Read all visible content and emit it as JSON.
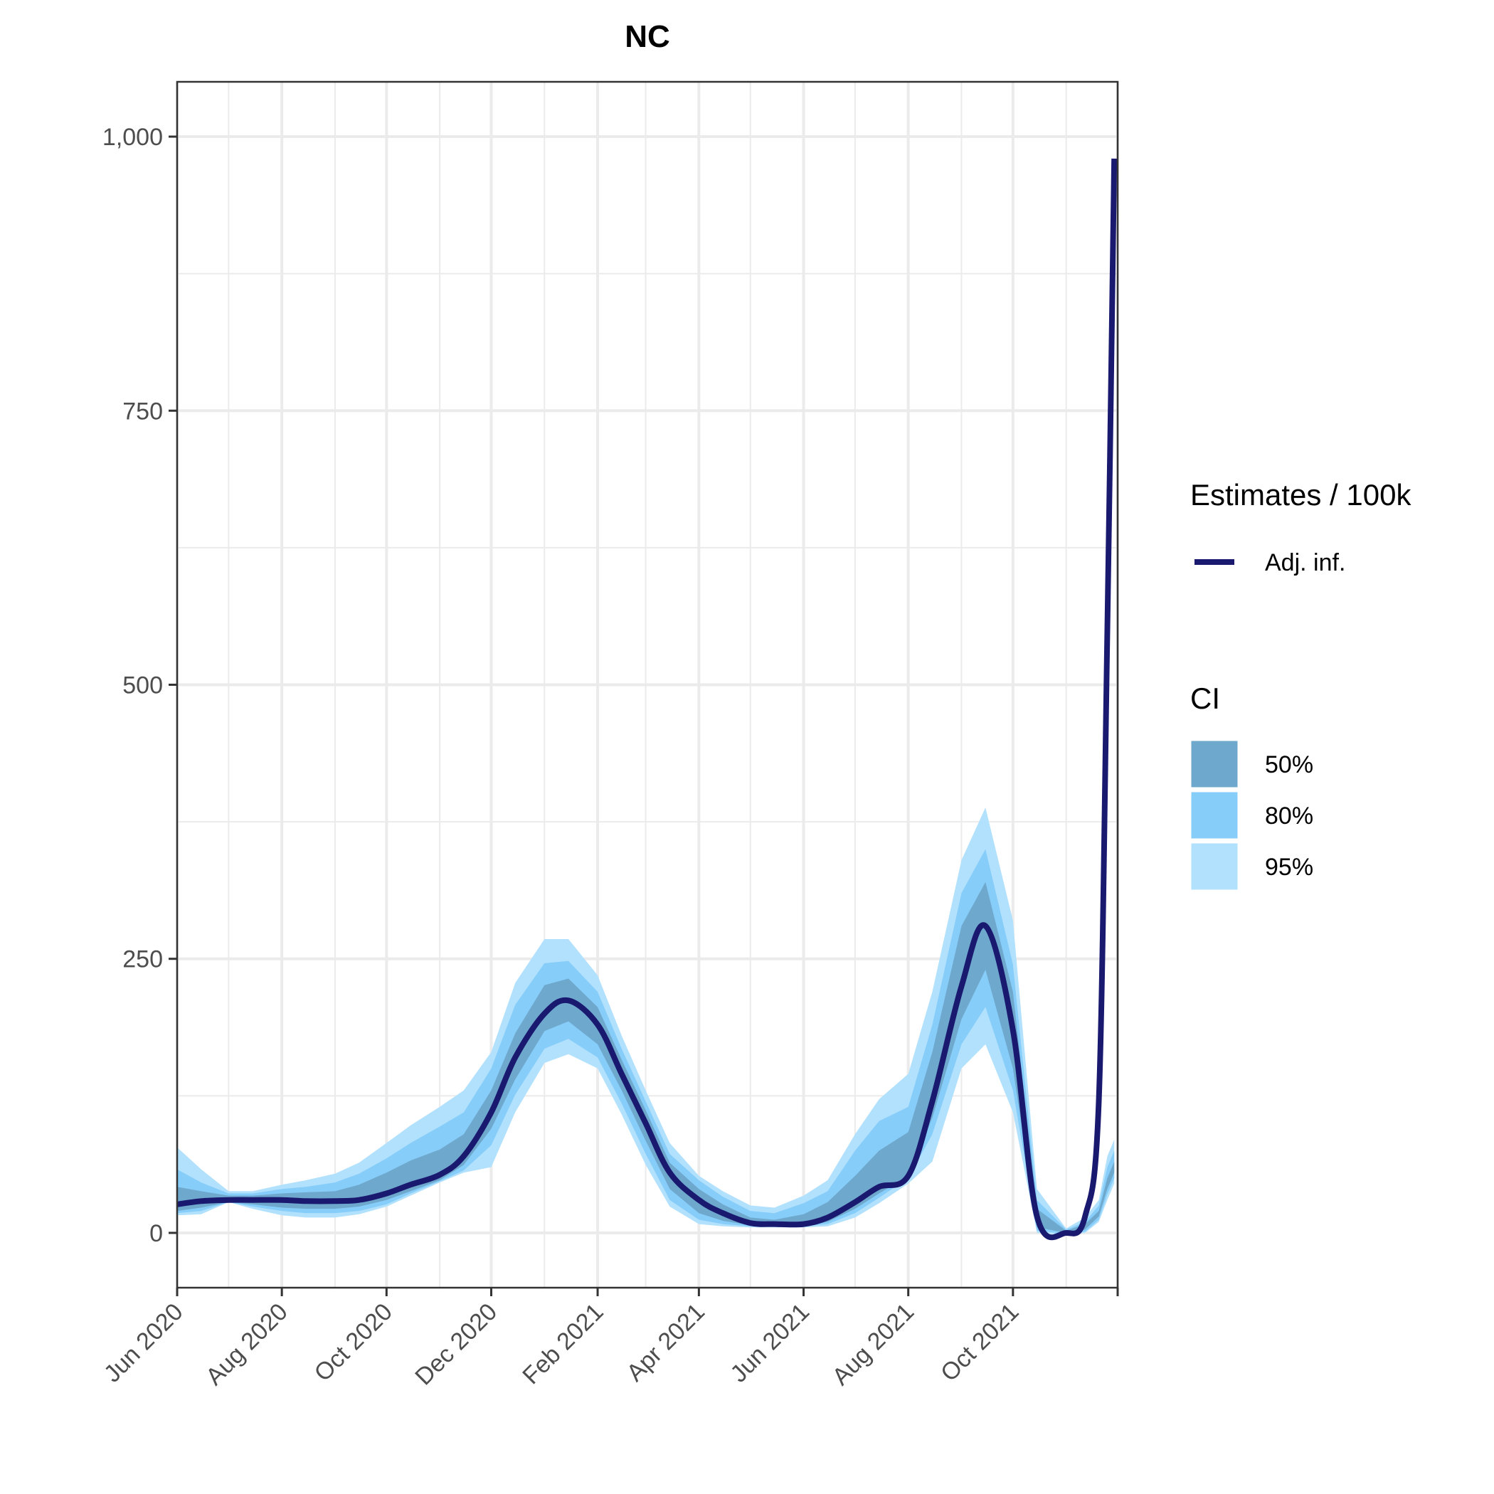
{
  "chart_data": {
    "type": "line",
    "title": "NC",
    "xlabel": "",
    "ylabel": "",
    "x_ticks": [
      "Jun 2020",
      "Aug 2020",
      "Oct 2020",
      "Dec 2020",
      "Feb 2021",
      "Apr 2021",
      "Jun 2021",
      "Aug 2021",
      "Oct 2021"
    ],
    "y_ticks": [
      "0",
      "250",
      "500",
      "750",
      "1,000"
    ],
    "ylim": [
      -50,
      1050
    ],
    "xlim": [
      "2020-06-01",
      "2021-12-01"
    ],
    "grid": true,
    "legend_placement": "right",
    "legend": {
      "estimates_title": "Estimates / 100k",
      "estimates_items": [
        {
          "label": "Adj. inf.",
          "color": "#191970"
        }
      ],
      "ci_title": "CI",
      "ci_items": [
        {
          "label": "50%",
          "color": "#6fa8cd"
        },
        {
          "label": "80%",
          "color": "#87cdfa"
        },
        {
          "label": "95%",
          "color": "#b2e1fd"
        }
      ]
    },
    "series": [
      {
        "name": "Adj. inf.",
        "color": "#191970",
        "points": [
          [
            "2020-06-01",
            26
          ],
          [
            "2020-06-15",
            29
          ],
          [
            "2020-07-01",
            30
          ],
          [
            "2020-07-15",
            30
          ],
          [
            "2020-08-01",
            30
          ],
          [
            "2020-08-15",
            29
          ],
          [
            "2020-09-01",
            29
          ],
          [
            "2020-09-15",
            30
          ],
          [
            "2020-10-01",
            36
          ],
          [
            "2020-10-15",
            44
          ],
          [
            "2020-11-01",
            53
          ],
          [
            "2020-11-15",
            70
          ],
          [
            "2020-12-01",
            110
          ],
          [
            "2020-12-15",
            160
          ],
          [
            "2021-01-01",
            200
          ],
          [
            "2021-01-15",
            212
          ],
          [
            "2021-02-01",
            190
          ],
          [
            "2021-02-15",
            145
          ],
          [
            "2021-03-01",
            100
          ],
          [
            "2021-03-15",
            55
          ],
          [
            "2021-04-01",
            30
          ],
          [
            "2021-04-15",
            18
          ],
          [
            "2021-05-01",
            9
          ],
          [
            "2021-05-15",
            8
          ],
          [
            "2021-06-01",
            8
          ],
          [
            "2021-06-15",
            14
          ],
          [
            "2021-07-01",
            28
          ],
          [
            "2021-07-15",
            42
          ],
          [
            "2021-08-01",
            52
          ],
          [
            "2021-08-15",
            120
          ],
          [
            "2021-09-01",
            225
          ],
          [
            "2021-09-15",
            280
          ],
          [
            "2021-10-01",
            185
          ],
          [
            "2021-10-15",
            15
          ],
          [
            "2021-11-01",
            0
          ],
          [
            "2021-11-12",
            15
          ],
          [
            "2021-11-20",
            120
          ],
          [
            "2021-11-25",
            550
          ],
          [
            "2021-11-29",
            980
          ]
        ]
      }
    ],
    "bands": [
      {
        "name": "95%",
        "color": "#b2e1fd",
        "points": [
          [
            "2020-06-01",
            16,
            78
          ],
          [
            "2020-06-15",
            17,
            58
          ],
          [
            "2020-07-01",
            28,
            38
          ],
          [
            "2020-07-15",
            22,
            38
          ],
          [
            "2020-08-01",
            16,
            44
          ],
          [
            "2020-08-15",
            14,
            48
          ],
          [
            "2020-09-01",
            14,
            54
          ],
          [
            "2020-09-15",
            17,
            64
          ],
          [
            "2020-10-01",
            24,
            82
          ],
          [
            "2020-10-15",
            34,
            98
          ],
          [
            "2020-11-01",
            46,
            115
          ],
          [
            "2020-11-15",
            55,
            130
          ],
          [
            "2020-12-01",
            60,
            165
          ],
          [
            "2020-12-15",
            110,
            228
          ],
          [
            "2021-01-01",
            155,
            268
          ],
          [
            "2021-01-15",
            163,
            268
          ],
          [
            "2021-02-01",
            150,
            235
          ],
          [
            "2021-02-15",
            108,
            180
          ],
          [
            "2021-03-01",
            62,
            130
          ],
          [
            "2021-03-15",
            24,
            82
          ],
          [
            "2021-04-01",
            8,
            52
          ],
          [
            "2021-04-15",
            6,
            38
          ],
          [
            "2021-05-01",
            5,
            25
          ],
          [
            "2021-05-15",
            5,
            23
          ],
          [
            "2021-06-01",
            5,
            34
          ],
          [
            "2021-06-15",
            6,
            48
          ],
          [
            "2021-07-01",
            14,
            90
          ],
          [
            "2021-07-15",
            27,
            122
          ],
          [
            "2021-08-01",
            45,
            145
          ],
          [
            "2021-08-15",
            65,
            220
          ],
          [
            "2021-09-01",
            150,
            340
          ],
          [
            "2021-09-15",
            172,
            388
          ],
          [
            "2021-10-01",
            110,
            285
          ],
          [
            "2021-10-15",
            0,
            40
          ],
          [
            "2021-11-01",
            -2,
            4
          ],
          [
            "2021-11-12",
            0,
            14
          ],
          [
            "2021-11-20",
            10,
            30
          ],
          [
            "2021-11-25",
            30,
            70
          ],
          [
            "2021-11-29",
            45,
            85
          ]
        ]
      },
      {
        "name": "80%",
        "color": "#87cdfa",
        "points": [
          [
            "2020-06-01",
            18,
            58
          ],
          [
            "2020-06-15",
            20,
            46
          ],
          [
            "2020-07-01",
            28,
            36
          ],
          [
            "2020-07-15",
            24,
            36
          ],
          [
            "2020-08-01",
            20,
            40
          ],
          [
            "2020-08-15",
            18,
            42
          ],
          [
            "2020-09-01",
            18,
            46
          ],
          [
            "2020-09-15",
            20,
            54
          ],
          [
            "2020-10-01",
            26,
            68
          ],
          [
            "2020-10-15",
            36,
            82
          ],
          [
            "2020-11-01",
            47,
            97
          ],
          [
            "2020-11-15",
            57,
            110
          ],
          [
            "2020-12-01",
            80,
            150
          ],
          [
            "2020-12-15",
            126,
            208
          ],
          [
            "2021-01-01",
            168,
            246
          ],
          [
            "2021-01-15",
            177,
            248
          ],
          [
            "2021-02-01",
            160,
            220
          ],
          [
            "2021-02-15",
            118,
            168
          ],
          [
            "2021-03-01",
            72,
            120
          ],
          [
            "2021-03-15",
            30,
            72
          ],
          [
            "2021-04-01",
            12,
            48
          ],
          [
            "2021-04-15",
            8,
            33
          ],
          [
            "2021-05-01",
            6,
            20
          ],
          [
            "2021-05-15",
            6,
            18
          ],
          [
            "2021-06-01",
            6,
            27
          ],
          [
            "2021-06-15",
            8,
            38
          ],
          [
            "2021-07-01",
            18,
            75
          ],
          [
            "2021-07-15",
            32,
            102
          ],
          [
            "2021-08-01",
            50,
            115
          ],
          [
            "2021-08-15",
            90,
            190
          ],
          [
            "2021-09-01",
            172,
            310
          ],
          [
            "2021-09-15",
            206,
            350
          ],
          [
            "2021-10-01",
            130,
            245
          ],
          [
            "2021-10-15",
            2,
            30
          ],
          [
            "2021-11-01",
            -1,
            3
          ],
          [
            "2021-11-12",
            1,
            10
          ],
          [
            "2021-11-20",
            12,
            25
          ],
          [
            "2021-11-25",
            35,
            60
          ],
          [
            "2021-11-29",
            50,
            75
          ]
        ]
      },
      {
        "name": "50%",
        "color": "#6fa8cd",
        "points": [
          [
            "2020-06-01",
            20,
            42
          ],
          [
            "2020-06-15",
            23,
            38
          ],
          [
            "2020-07-01",
            28,
            34
          ],
          [
            "2020-07-15",
            26,
            34
          ],
          [
            "2020-08-01",
            23,
            36
          ],
          [
            "2020-08-15",
            22,
            37
          ],
          [
            "2020-09-01",
            22,
            38
          ],
          [
            "2020-09-15",
            24,
            44
          ],
          [
            "2020-10-01",
            30,
            55
          ],
          [
            "2020-10-15",
            38,
            66
          ],
          [
            "2020-11-01",
            48,
            76
          ],
          [
            "2020-11-15",
            62,
            90
          ],
          [
            "2020-12-01",
            95,
            130
          ],
          [
            "2020-12-15",
            140,
            182
          ],
          [
            "2021-01-01",
            184,
            226
          ],
          [
            "2021-01-15",
            193,
            232
          ],
          [
            "2021-02-01",
            172,
            206
          ],
          [
            "2021-02-15",
            130,
            158
          ],
          [
            "2021-03-01",
            84,
            112
          ],
          [
            "2021-03-15",
            40,
            64
          ],
          [
            "2021-04-01",
            18,
            40
          ],
          [
            "2021-04-15",
            11,
            26
          ],
          [
            "2021-05-01",
            7,
            14
          ],
          [
            "2021-05-15",
            6,
            12
          ],
          [
            "2021-06-01",
            6,
            17
          ],
          [
            "2021-06-15",
            10,
            28
          ],
          [
            "2021-07-01",
            22,
            52
          ],
          [
            "2021-07-15",
            36,
            75
          ],
          [
            "2021-08-01",
            52,
            92
          ],
          [
            "2021-08-15",
            105,
            165
          ],
          [
            "2021-09-01",
            195,
            280
          ],
          [
            "2021-09-15",
            240,
            320
          ],
          [
            "2021-10-01",
            150,
            220
          ],
          [
            "2021-10-15",
            5,
            22
          ],
          [
            "2021-11-01",
            0,
            2
          ],
          [
            "2021-11-12",
            3,
            8
          ],
          [
            "2021-11-20",
            15,
            20
          ],
          [
            "2021-11-25",
            40,
            50
          ],
          [
            "2021-11-29",
            55,
            65
          ]
        ]
      }
    ]
  }
}
